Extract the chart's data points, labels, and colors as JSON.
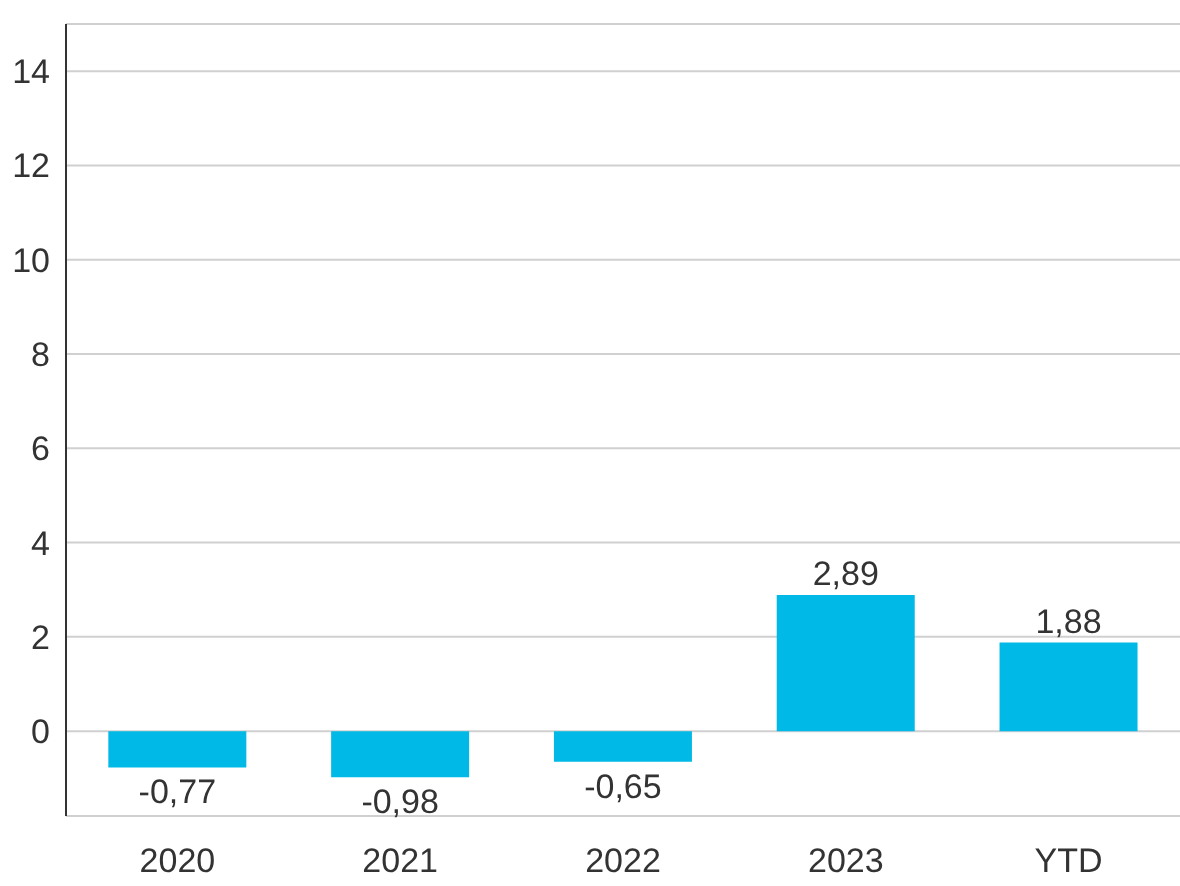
{
  "chart_data": {
    "type": "bar",
    "categories": [
      "2020",
      "2021",
      "2022",
      "2023",
      "YTD"
    ],
    "values": [
      -0.77,
      -0.98,
      -0.65,
      2.89,
      1.88
    ],
    "value_labels": [
      "-0,77",
      "-0,98",
      "-0,65",
      "2,89",
      "1,88"
    ],
    "color": "#00b9e6",
    "ylim": [
      -1.8,
      15
    ],
    "yticks": [
      0,
      2,
      4,
      6,
      8,
      10,
      12,
      14
    ],
    "grid": "y",
    "legend": false
  }
}
